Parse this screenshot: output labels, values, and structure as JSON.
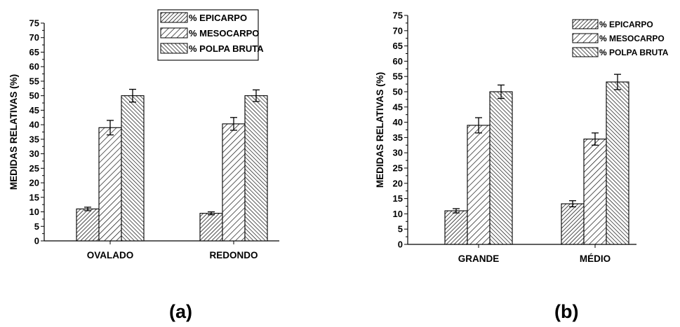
{
  "chart_data": [
    {
      "type": "bar",
      "panel_label": "(a)",
      "ylabel": "MEDIDAS RELATIVAS (%)",
      "xlabel": "",
      "ylim": [
        0,
        75
      ],
      "yticks": [
        0,
        5,
        10,
        15,
        20,
        25,
        30,
        35,
        40,
        45,
        50,
        55,
        60,
        65,
        70,
        75
      ],
      "categories": [
        "OVALADO",
        "REDONDO"
      ],
      "series": [
        {
          "name": "% EPICARPO",
          "values": [
            11,
            9.5
          ],
          "errors": [
            0.6,
            0.5
          ],
          "pattern": "hatch-dense-forward"
        },
        {
          "name": "% MESOCARPO",
          "values": [
            39,
            40.3
          ],
          "errors": [
            2.5,
            2.2
          ],
          "pattern": "hatch-forward"
        },
        {
          "name": "% POLPA BRUTA",
          "values": [
            50,
            50
          ],
          "errors": [
            2.2,
            2.0
          ],
          "pattern": "hatch-back"
        }
      ],
      "legend_position": "top-right",
      "legend_boxed": true
    },
    {
      "type": "bar",
      "panel_label": "(b)",
      "ylabel": "MEDIDAS RELATIVAS (%)",
      "xlabel": "",
      "ylim": [
        0,
        75
      ],
      "yticks": [
        0,
        5,
        10,
        15,
        20,
        25,
        30,
        35,
        40,
        45,
        50,
        55,
        60,
        65,
        70,
        75
      ],
      "categories": [
        "GRANDE",
        "MÉDIO"
      ],
      "series": [
        {
          "name": "% EPICARPO",
          "values": [
            11,
            13.3
          ],
          "errors": [
            0.7,
            1.0
          ],
          "pattern": "hatch-dense-forward"
        },
        {
          "name": "% MESOCARPO",
          "values": [
            39,
            34.5
          ],
          "errors": [
            2.5,
            2.0
          ],
          "pattern": "hatch-forward"
        },
        {
          "name": "% POLPA BRUTA",
          "values": [
            50,
            53.2
          ],
          "errors": [
            2.2,
            2.5
          ],
          "pattern": "hatch-back"
        }
      ],
      "legend_position": "top-right",
      "legend_boxed": false
    }
  ]
}
